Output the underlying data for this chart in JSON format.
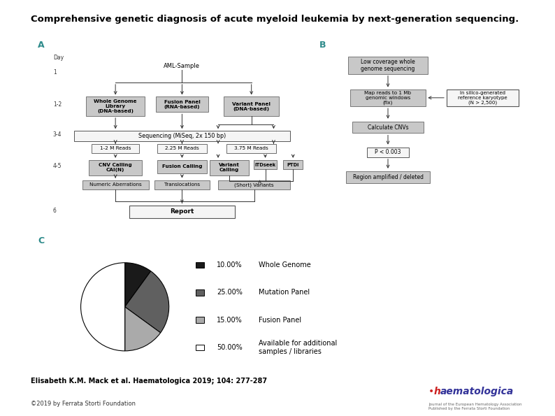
{
  "title": "Comprehensive genetic diagnosis of acute myeloid leukemia by next-generation sequencing.",
  "title_fontsize": 9.5,
  "bg_color": "#ffffff",
  "panel_a_label": "A",
  "panel_b_label": "B",
  "panel_c_label": "C",
  "citation": "Elisabeth K.M. Mack et al. Haematologica 2019; 104: 277-287",
  "copyright": "©2019 by Ferrata Storti Foundation",
  "pie_values": [
    10,
    25,
    15,
    50
  ],
  "pie_colors": [
    "#1a1a1a",
    "#606060",
    "#aaaaaa",
    "#ffffff"
  ],
  "pie_startangle": 90,
  "teal": "#2e8b8b",
  "gc": "#c8c8c8",
  "ec": "#666666",
  "wc": "#f5f5f5"
}
